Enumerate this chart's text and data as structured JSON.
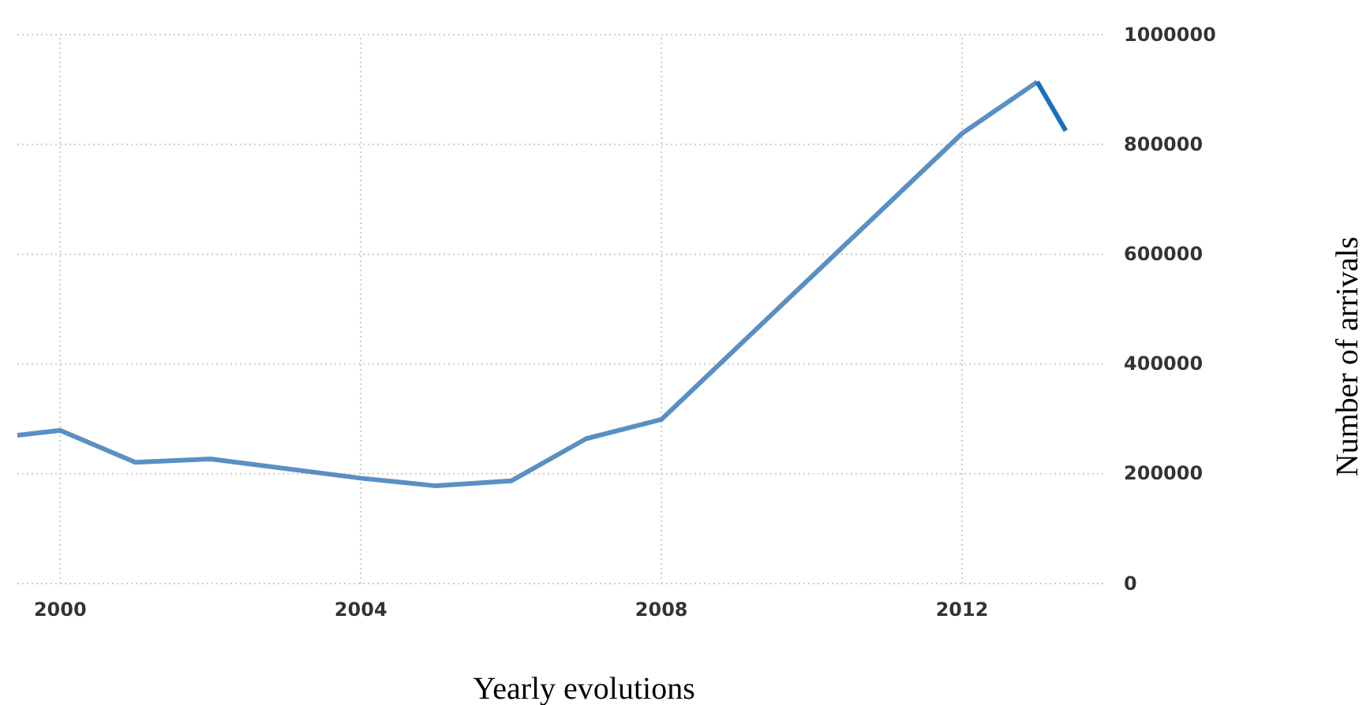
{
  "chart_data": {
    "type": "line",
    "xlabel": "Yearly evolutions",
    "ylabel": "Number of arrivals",
    "xlim": [
      1999.43,
      2013.9
    ],
    "xticks": [
      2000,
      2004,
      2008,
      2012
    ],
    "ylim": [
      0,
      1000000
    ],
    "yticks": [
      0,
      200000,
      400000,
      600000,
      800000,
      1000000
    ],
    "grid": true,
    "marker": "none",
    "line_style": "solid",
    "series": [
      {
        "color": "#5a8fc3",
        "x": [
          1999.43,
          2000,
          2001,
          2002,
          2004,
          2005,
          2006,
          2007,
          2008,
          2012,
          2013
        ],
        "values": [
          270000,
          279000,
          221000,
          227000,
          192000,
          178000,
          187000,
          264000,
          299000,
          820000,
          914000
        ]
      },
      {
        "color": "#1a6fbf",
        "x": [
          2013,
          2013.38
        ],
        "values": [
          914000,
          825000
        ]
      }
    ]
  }
}
